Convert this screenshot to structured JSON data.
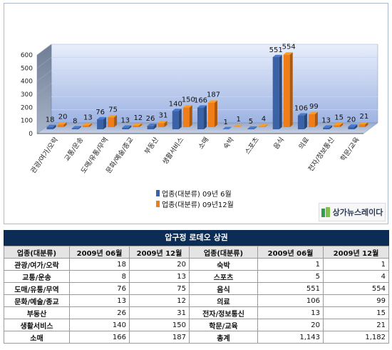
{
  "chart_data": {
    "type": "bar",
    "title": "",
    "xlabel": "",
    "ylabel": "",
    "ylim": [
      0,
      600
    ],
    "yticks": [
      0,
      100,
      200,
      300,
      400,
      500,
      600
    ],
    "grid": true,
    "legend_position": "bottom",
    "categories": [
      "관광/여가/오락",
      "교통/운송",
      "도매/유통/무역",
      "문화/예술/종교",
      "부동산",
      "생활서비스",
      "소매",
      "숙박",
      "스포츠",
      "음식",
      "의료",
      "전자/정보통신",
      "학문/교육"
    ],
    "series": [
      {
        "name": "업종(대분류) 09년 6월",
        "color": "#3b62a6",
        "values": [
          18,
          8,
          76,
          13,
          26,
          140,
          166,
          1,
          5,
          551,
          106,
          13,
          20
        ]
      },
      {
        "name": "업종(대분류) 09년12월",
        "color": "#f07d17",
        "values": [
          20,
          13,
          75,
          12,
          31,
          150,
          187,
          1,
          4,
          554,
          99,
          15,
          21
        ]
      }
    ]
  },
  "watermark": {
    "text": "상가뉴스레이다"
  },
  "table": {
    "title": "압구정 로데오 상권",
    "headers": [
      "업종(대분류)",
      "2009년 06월",
      "2009년 12월",
      "업종(대분류)",
      "2009년 06월",
      "2009년 12월"
    ],
    "rows": [
      [
        "관광/여가/오락",
        "18",
        "20",
        "숙박",
        "1",
        "1"
      ],
      [
        "교통/운송",
        "8",
        "13",
        "스포츠",
        "5",
        "4"
      ],
      [
        "도매/유통/무역",
        "76",
        "75",
        "음식",
        "551",
        "554"
      ],
      [
        "문화/예술/종교",
        "13",
        "12",
        "의료",
        "106",
        "99"
      ],
      [
        "부동산",
        "26",
        "31",
        "전자/정보통신",
        "13",
        "15"
      ],
      [
        "생활서비스",
        "140",
        "150",
        "학문/교육",
        "20",
        "21"
      ],
      [
        "소매",
        "166",
        "187",
        "총계",
        "1,143",
        "1,182"
      ]
    ]
  }
}
